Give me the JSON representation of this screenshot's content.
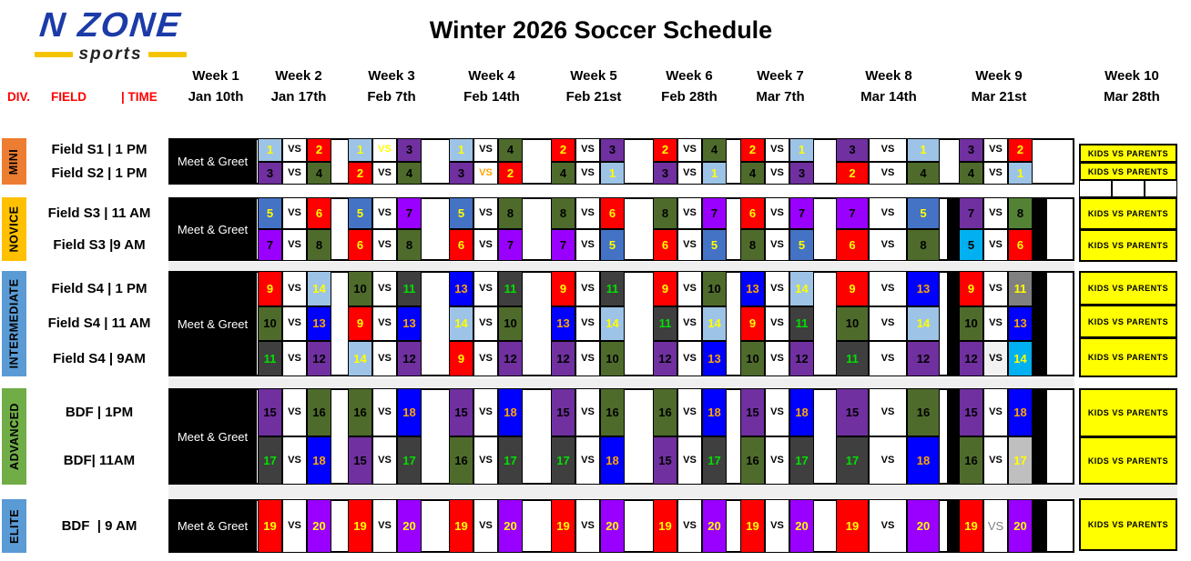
{
  "logo": {
    "name": "n zone",
    "sub": "sports"
  },
  "title": "Winter 2026 Soccer Schedule",
  "column_labels": {
    "division": "DIV.",
    "field": "FIELD",
    "time": "| TIME"
  },
  "weeks": [
    {
      "label": "Week 1",
      "date": "Jan 10th"
    },
    {
      "label": "Week 2",
      "date": "Jan 17th"
    },
    {
      "label": "Week 3",
      "date": "Feb 7th"
    },
    {
      "label": "Week 4",
      "date": "Feb 14th"
    },
    {
      "label": "Week 5",
      "date": "Feb 21st"
    },
    {
      "label": "Week 6",
      "date": "Feb 28th"
    },
    {
      "label": "Week 7",
      "date": "Mar 7th"
    },
    {
      "label": "Week 8",
      "date": "Mar 14th"
    },
    {
      "label": "Week 9",
      "date": "Mar 21st"
    },
    {
      "label": "Week 10",
      "date": "Mar 28th"
    }
  ],
  "week1_label": "Meet & Greet",
  "vs_label": "VS",
  "week10_cell_label": "KIDS VS PARENTS",
  "colors": {
    "header_label_red": "#FF0000",
    "logo_blue": "#1C3BA8",
    "logo_yellow": "#F5C400",
    "meet_greet_bg": "#000000",
    "kids_bg": "#FFFF00",
    "week9_band": "#000000",
    "divider_strip": "#EFEFEF"
  },
  "teams": {
    "1": {
      "bg": "#9DC3E6",
      "fg": "#FFFF00"
    },
    "2": {
      "bg": "#FF0000",
      "fg": "#FFFF00"
    },
    "3": {
      "bg": "#7030A0",
      "fg": "#000000"
    },
    "4": {
      "bg": "#4E6B2B",
      "fg": "#000000"
    },
    "5": {
      "bg": "#4472C4",
      "fg": "#FFFF00"
    },
    "6": {
      "bg": "#FF0000",
      "fg": "#FFFF00"
    },
    "7": {
      "bg": "#9900FF",
      "fg": "#000000"
    },
    "8": {
      "bg": "#4E6B2B",
      "fg": "#000000"
    },
    "9": {
      "bg": "#FF0000",
      "fg": "#FFFF00"
    },
    "10": {
      "bg": "#4E6B2B",
      "fg": "#000000"
    },
    "11": {
      "bg": "#3F3F3F",
      "fg": "#00E000"
    },
    "12": {
      "bg": "#7030A0",
      "fg": "#000000"
    },
    "13": {
      "bg": "#0000FF",
      "fg": "#FFA500"
    },
    "14": {
      "bg": "#9DC3E6",
      "fg": "#FFFF00"
    },
    "15": {
      "bg": "#7030A0",
      "fg": "#000000"
    },
    "16": {
      "bg": "#4E6B2B",
      "fg": "#000000"
    },
    "17": {
      "bg": "#3F3F3F",
      "fg": "#00E000"
    },
    "18": {
      "bg": "#0000FF",
      "fg": "#FFA500"
    },
    "19": {
      "bg": "#FF0000",
      "fg": "#FFFF00"
    },
    "20": {
      "bg": "#9900FF",
      "fg": "#FFFF00"
    }
  },
  "divisions": [
    {
      "name": "MINI",
      "bar_color": "#ED7D31",
      "rows": [
        {
          "label": "Field S1 | 1 PM",
          "matches": [
            [
              1,
              2
            ],
            [
              1,
              3,
              {
                "vsfg": "#FFFF00"
              }
            ],
            [
              1,
              4
            ],
            [
              2,
              3
            ],
            [
              2,
              4
            ],
            [
              2,
              1
            ],
            [
              3,
              1
            ],
            [
              3,
              2
            ]
          ]
        },
        {
          "label": "Field S2 | 1 PM",
          "matches": [
            [
              3,
              4
            ],
            [
              2,
              4
            ],
            [
              3,
              2,
              {
                "vsfg": "#FFA500"
              }
            ],
            [
              4,
              1
            ],
            [
              3,
              1
            ],
            [
              4,
              3
            ],
            [
              2,
              4
            ],
            [
              4,
              1
            ]
          ]
        }
      ]
    },
    {
      "name": "NOVICE",
      "bar_color": "#FFC000",
      "rows": [
        {
          "label": "Field S3 | 11 AM",
          "matches": [
            [
              5,
              6
            ],
            [
              5,
              7
            ],
            [
              5,
              8
            ],
            [
              8,
              6
            ],
            [
              8,
              7
            ],
            [
              6,
              7
            ],
            [
              7,
              5
            ],
            [
              7,
              8,
              {
                "hbg": "#7030A0",
                "abg": "#548235"
              }
            ]
          ]
        },
        {
          "label": "Field S3 |9 AM",
          "matches": [
            [
              7,
              8
            ],
            [
              6,
              8
            ],
            [
              6,
              7
            ],
            [
              7,
              5
            ],
            [
              6,
              5
            ],
            [
              8,
              5
            ],
            [
              6,
              8
            ],
            [
              5,
              6,
              {
                "hbg": "#00B0F0",
                "hfg": "#000000"
              }
            ]
          ]
        }
      ]
    },
    {
      "name": "INTERMEDIATE",
      "bar_color": "#5B9BD5",
      "rows": [
        {
          "label": "Field S4 | 1 PM",
          "matches": [
            [
              9,
              14
            ],
            [
              10,
              11
            ],
            [
              13,
              11
            ],
            [
              9,
              11
            ],
            [
              9,
              10
            ],
            [
              13,
              14
            ],
            [
              9,
              13
            ],
            [
              9,
              11,
              {
                "abg": "#808080",
                "afg": "#FFFF00"
              }
            ]
          ]
        },
        {
          "label": "Field S4 | 11 AM",
          "matches": [
            [
              10,
              13
            ],
            [
              9,
              13
            ],
            [
              14,
              10
            ],
            [
              13,
              14
            ],
            [
              11,
              14
            ],
            [
              9,
              11
            ],
            [
              10,
              14
            ],
            [
              10,
              13
            ]
          ]
        },
        {
          "label": "Field S4 | 9AM",
          "matches": [
            [
              11,
              12
            ],
            [
              14,
              12
            ],
            [
              9,
              12
            ],
            [
              12,
              10
            ],
            [
              12,
              13
            ],
            [
              10,
              12
            ],
            [
              11,
              12
            ],
            [
              12,
              14,
              {
                "abg": "#00B0F0",
                "vsbg": "#F2F2F2"
              }
            ]
          ]
        }
      ]
    },
    {
      "name": "ADVANCED",
      "bar_color": "#70AD47",
      "rows": [
        {
          "label": "BDF | 1PM",
          "matches": [
            [
              15,
              16
            ],
            [
              16,
              18
            ],
            [
              15,
              18
            ],
            [
              15,
              16
            ],
            [
              16,
              18
            ],
            [
              15,
              18
            ],
            [
              15,
              16
            ],
            [
              15,
              18
            ]
          ]
        },
        {
          "label": "BDF| 11AM",
          "matches": [
            [
              17,
              18
            ],
            [
              15,
              17
            ],
            [
              16,
              17
            ],
            [
              17,
              18
            ],
            [
              15,
              17
            ],
            [
              16,
              17
            ],
            [
              17,
              18
            ],
            [
              16,
              17,
              {
                "abg": "#BFBFBF",
                "afg": "#FFFF00"
              }
            ]
          ]
        }
      ]
    },
    {
      "name": "ELITE",
      "bar_color": "#5B9BD5",
      "rows": [
        {
          "label": "BDF  | 9 AM",
          "matches": [
            [
              19,
              20
            ],
            [
              19,
              20
            ],
            [
              19,
              20
            ],
            [
              19,
              20
            ],
            [
              19,
              20
            ],
            [
              19,
              20
            ],
            [
              19,
              20
            ],
            [
              19,
              20,
              {
                "vsfg": "#808080",
                "vsw": "normal",
                "vsfs": 13
              }
            ]
          ]
        }
      ]
    }
  ]
}
